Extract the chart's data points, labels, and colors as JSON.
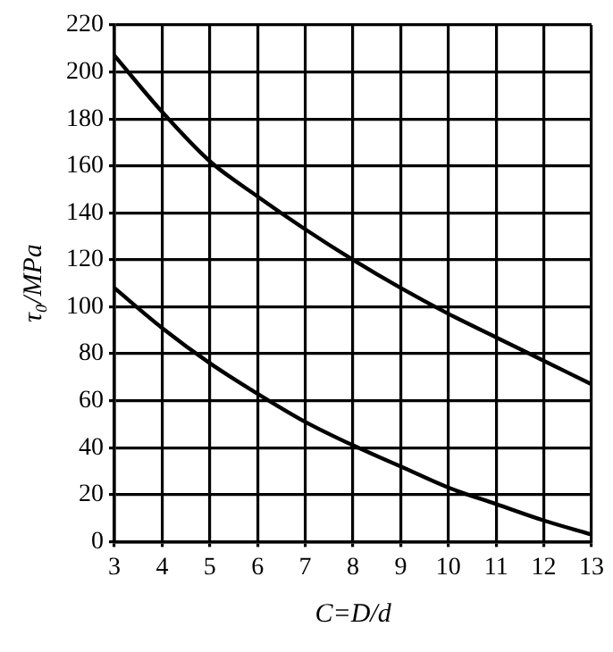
{
  "chart_data": {
    "type": "line",
    "xlabel": "C=D/d",
    "ylabel": "τ₀/MPa",
    "x": [
      3,
      4,
      5,
      6,
      7,
      8,
      9,
      10,
      11,
      12,
      13
    ],
    "series": [
      {
        "color": "#000000",
        "values": [
          207,
          183,
          162,
          147,
          133,
          120,
          108,
          97,
          87,
          77,
          67
        ]
      },
      {
        "color": "#000000",
        "values": [
          108,
          91,
          76,
          63,
          51,
          41,
          32,
          23,
          16,
          9,
          3
        ]
      }
    ],
    "xlim": [
      3,
      13
    ],
    "xticks": [
      3,
      4,
      5,
      6,
      7,
      8,
      9,
      10,
      11,
      12,
      13
    ],
    "ylim": [
      0,
      220
    ],
    "yticks": [
      0,
      20,
      40,
      60,
      80,
      100,
      120,
      140,
      160,
      180,
      200,
      220
    ],
    "grid": true,
    "legend": false,
    "marker": "none",
    "line_style": "solid"
  }
}
